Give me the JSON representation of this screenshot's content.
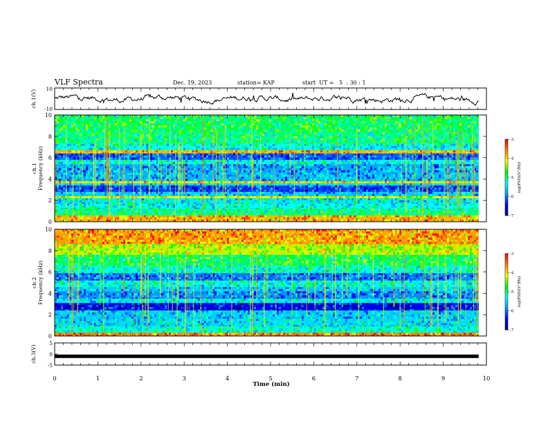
{
  "header": {
    "title": "VLF Spectra",
    "date": "Dec. 19, 2023",
    "station": "station= KAP",
    "start": "start  UT =   5  : 30 : 1"
  },
  "chart_data": [
    {
      "type": "line",
      "panel": "ch1-waveform",
      "ylabel": "ch.1(V)",
      "ylim": [
        -10,
        10
      ],
      "yticks": [
        "10",
        "-10"
      ],
      "xlim": [
        0,
        10
      ],
      "x_end": 9.82,
      "note_values": "amplitude roughly -5..5 V, mean about 0, with sharp spikes",
      "color": "#000000"
    },
    {
      "type": "heatmap",
      "panel": "ch1-spectrogram",
      "ylabel": "ch.1\nFrequency (kHz)",
      "ylim": [
        0,
        10
      ],
      "yticks": [
        "0",
        "2",
        "4",
        "6",
        "8",
        "10"
      ],
      "xlim": [
        0,
        10
      ],
      "x_end": 9.82,
      "bands": [
        {
          "f": [
            0.0,
            0.6
          ],
          "level": -3.8
        },
        {
          "f": [
            0.6,
            1.2
          ],
          "level": -5.0
        },
        {
          "f": [
            1.2,
            1.7
          ],
          "level": -5.3
        },
        {
          "f": [
            1.7,
            2.2
          ],
          "level": -5.4
        },
        {
          "f": [
            2.2,
            2.4
          ],
          "level": -4.2
        },
        {
          "f": [
            2.4,
            2.8
          ],
          "level": -5.6
        },
        {
          "f": [
            2.8,
            3.4
          ],
          "level": -6.2
        },
        {
          "f": [
            3.4,
            3.6
          ],
          "level": -5.5
        },
        {
          "f": [
            3.6,
            3.8
          ],
          "level": -4.0
        },
        {
          "f": [
            3.8,
            4.6
          ],
          "level": -5.7
        },
        {
          "f": [
            4.6,
            5.4
          ],
          "level": -5.8
        },
        {
          "f": [
            5.4,
            5.8
          ],
          "level": -5.3
        },
        {
          "f": [
            5.8,
            6.4
          ],
          "level": -6.1
        },
        {
          "f": [
            6.4,
            6.7
          ],
          "level": -3.8
        },
        {
          "f": [
            6.7,
            7.3
          ],
          "level": -5.3
        },
        {
          "f": [
            7.3,
            8.4
          ],
          "level": -5.0
        },
        {
          "f": [
            8.4,
            10.0
          ],
          "level": -4.9
        }
      ],
      "colorbar": {
        "label": "log(PSD)(V²/Hz)",
        "range": [
          -7,
          -3
        ],
        "ticks": [
          "-3",
          "-4",
          "-5",
          "-6",
          "-7"
        ]
      }
    },
    {
      "type": "heatmap",
      "panel": "ch2-spectrogram",
      "ylabel": "ch.2\nFrequency (kHz)",
      "ylim": [
        0,
        10
      ],
      "yticks": [
        "0",
        "2",
        "4",
        "6",
        "8",
        "10"
      ],
      "xlim": [
        0,
        10
      ],
      "x_end": 9.82,
      "bands": [
        {
          "f": [
            0.0,
            0.3
          ],
          "level": -3.6
        },
        {
          "f": [
            0.3,
            0.9
          ],
          "level": -5.2
        },
        {
          "f": [
            0.9,
            1.6
          ],
          "level": -5.5
        },
        {
          "f": [
            1.6,
            2.4
          ],
          "level": -5.6
        },
        {
          "f": [
            2.4,
            3.1
          ],
          "level": -6.5
        },
        {
          "f": [
            3.1,
            3.5
          ],
          "level": -5.4
        },
        {
          "f": [
            3.5,
            4.2
          ],
          "level": -5.9
        },
        {
          "f": [
            4.2,
            4.6
          ],
          "level": -5.6
        },
        {
          "f": [
            4.6,
            5.2
          ],
          "level": -5.3
        },
        {
          "f": [
            5.2,
            5.9
          ],
          "level": -6.0
        },
        {
          "f": [
            5.9,
            6.6
          ],
          "level": -5.2
        },
        {
          "f": [
            6.6,
            7.6
          ],
          "level": -4.9
        },
        {
          "f": [
            7.6,
            8.6
          ],
          "level": -4.3
        },
        {
          "f": [
            8.6,
            10.0
          ],
          "level": -3.7
        }
      ],
      "colorbar": {
        "label": "log(PSD)(V²/Hz)",
        "range": [
          -7,
          -3
        ],
        "ticks": [
          "-3",
          "-4",
          "-5",
          "-6",
          "-7"
        ]
      }
    },
    {
      "type": "line",
      "panel": "ch3-waveform",
      "ylabel": "ch.3(V)",
      "ylim": [
        -5,
        5
      ],
      "yticks": [
        "5",
        "0",
        "-5"
      ],
      "xlim": [
        0,
        10
      ],
      "x_end": 9.82,
      "value": -1.0,
      "color": "#000000"
    }
  ],
  "xaxis": {
    "label": "Time  (min)",
    "ticks": [
      "0",
      "1",
      "2",
      "3",
      "4",
      "5",
      "6",
      "7",
      "8",
      "9",
      "10"
    ]
  },
  "colors": {
    "colormap": [
      "#000080",
      "#0000ff",
      "#00a0ff",
      "#00ffff",
      "#00ff00",
      "#ffff00",
      "#ff8000",
      "#ff0000",
      "#ffffff"
    ]
  }
}
